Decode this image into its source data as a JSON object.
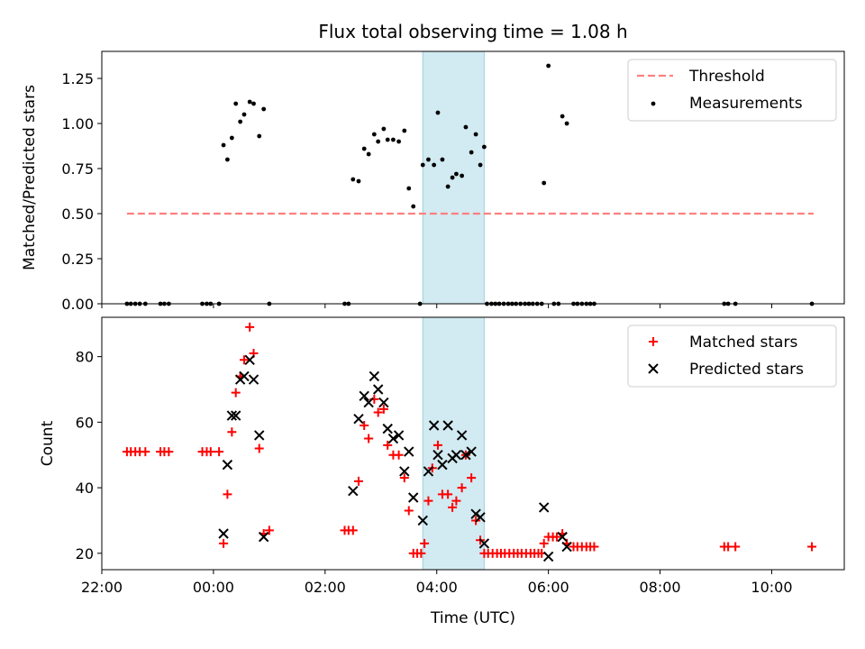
{
  "chart_data": [
    {
      "type": "scatter",
      "title": "Flux total observing time = 1.08 h",
      "xlabel": "",
      "ylabel": "Matched/Predicted stars",
      "xlim": [
        -2.0,
        11.3
      ],
      "ylim": [
        0,
        1.4
      ],
      "yticks": [
        0.0,
        0.25,
        0.5,
        0.75,
        1.0,
        1.25
      ],
      "ytick_labels": [
        "0.00",
        "0.25",
        "0.50",
        "0.75",
        "1.00",
        "1.25"
      ],
      "highlight": {
        "x0": 3.75,
        "x1": 4.85,
        "color": "#add8e6"
      },
      "legend": {
        "position": "top-right",
        "entries": [
          "Threshold",
          "Measurements"
        ]
      },
      "series": [
        {
          "name": "Threshold",
          "kind": "dashed-line",
          "color": "#ff7f7f",
          "x": [
            -1.55,
            10.75
          ],
          "y": [
            0.5,
            0.5
          ]
        },
        {
          "name": "Measurements",
          "kind": "dot",
          "color": "#000000",
          "points": [
            [
              -1.55,
              0
            ],
            [
              -1.48,
              0
            ],
            [
              -1.4,
              0
            ],
            [
              -1.32,
              0
            ],
            [
              -1.22,
              0
            ],
            [
              -0.95,
              0
            ],
            [
              -0.88,
              0
            ],
            [
              -0.8,
              0
            ],
            [
              -0.2,
              0
            ],
            [
              -0.12,
              0
            ],
            [
              -0.05,
              0
            ],
            [
              0.1,
              0
            ],
            [
              0.18,
              0.88
            ],
            [
              0.25,
              0.8
            ],
            [
              0.33,
              0.92
            ],
            [
              0.4,
              1.11
            ],
            [
              0.48,
              1.01
            ],
            [
              0.55,
              1.05
            ],
            [
              0.65,
              1.12
            ],
            [
              0.72,
              1.11
            ],
            [
              0.82,
              0.93
            ],
            [
              0.9,
              1.08
            ],
            [
              1.0,
              0
            ],
            [
              2.35,
              0
            ],
            [
              2.42,
              0
            ],
            [
              2.5,
              0.69
            ],
            [
              2.6,
              0.68
            ],
            [
              2.7,
              0.86
            ],
            [
              2.78,
              0.83
            ],
            [
              2.88,
              0.94
            ],
            [
              2.95,
              0.9
            ],
            [
              3.05,
              0.97
            ],
            [
              3.12,
              0.91
            ],
            [
              3.22,
              0.91
            ],
            [
              3.32,
              0.9
            ],
            [
              3.42,
              0.96
            ],
            [
              3.5,
              0.64
            ],
            [
              3.58,
              0.54
            ],
            [
              3.7,
              0
            ],
            [
              3.75,
              0.77
            ],
            [
              3.85,
              0.8
            ],
            [
              3.95,
              0.77
            ],
            [
              4.02,
              1.06
            ],
            [
              4.1,
              0.8
            ],
            [
              4.2,
              0.65
            ],
            [
              4.28,
              0.7
            ],
            [
              4.35,
              0.72
            ],
            [
              4.45,
              0.71
            ],
            [
              4.52,
              0.98
            ],
            [
              4.62,
              0.84
            ],
            [
              4.7,
              0.94
            ],
            [
              4.78,
              0.77
            ],
            [
              4.85,
              0.87
            ],
            [
              4.9,
              0
            ],
            [
              4.98,
              0
            ],
            [
              5.05,
              0
            ],
            [
              5.12,
              0
            ],
            [
              5.2,
              0
            ],
            [
              5.28,
              0
            ],
            [
              5.35,
              0
            ],
            [
              5.42,
              0
            ],
            [
              5.5,
              0
            ],
            [
              5.58,
              0
            ],
            [
              5.65,
              0
            ],
            [
              5.72,
              0
            ],
            [
              5.8,
              0
            ],
            [
              5.88,
              0
            ],
            [
              5.92,
              0.67
            ],
            [
              6.0,
              1.32
            ],
            [
              6.1,
              0
            ],
            [
              6.18,
              0
            ],
            [
              6.25,
              1.04
            ],
            [
              6.33,
              1.0
            ],
            [
              6.45,
              0
            ],
            [
              6.52,
              0
            ],
            [
              6.6,
              0
            ],
            [
              6.68,
              0
            ],
            [
              6.75,
              0
            ],
            [
              6.82,
              0
            ],
            [
              9.15,
              0
            ],
            [
              9.22,
              0
            ],
            [
              9.35,
              0
            ],
            [
              10.72,
              0
            ]
          ]
        }
      ]
    },
    {
      "type": "scatter",
      "title": "",
      "xlabel": "Time (UTC)",
      "ylabel": "Count",
      "xlim": [
        -2.0,
        11.3
      ],
      "ylim": [
        15,
        92
      ],
      "yticks": [
        20,
        40,
        60,
        80
      ],
      "ytick_labels": [
        "20",
        "40",
        "60",
        "80"
      ],
      "xticks": [
        -2,
        0,
        2,
        4,
        6,
        8,
        10
      ],
      "xtick_labels": [
        "22:00",
        "00:00",
        "02:00",
        "04:00",
        "06:00",
        "08:00",
        "10:00"
      ],
      "highlight": {
        "x0": 3.75,
        "x1": 4.85,
        "color": "#add8e6"
      },
      "legend": {
        "position": "top-right",
        "entries": [
          "Matched stars",
          "Predicted stars"
        ]
      },
      "series": [
        {
          "name": "Matched stars",
          "kind": "plus",
          "color": "#ff0000",
          "points": [
            [
              -1.55,
              51
            ],
            [
              -1.48,
              51
            ],
            [
              -1.4,
              51
            ],
            [
              -1.32,
              51
            ],
            [
              -1.22,
              51
            ],
            [
              -0.95,
              51
            ],
            [
              -0.88,
              51
            ],
            [
              -0.8,
              51
            ],
            [
              -0.2,
              51
            ],
            [
              -0.12,
              51
            ],
            [
              -0.05,
              51
            ],
            [
              0.1,
              51
            ],
            [
              0.18,
              23
            ],
            [
              0.25,
              38
            ],
            [
              0.33,
              57
            ],
            [
              0.4,
              69
            ],
            [
              0.48,
              74
            ],
            [
              0.55,
              79
            ],
            [
              0.65,
              89
            ],
            [
              0.72,
              81
            ],
            [
              0.82,
              52
            ],
            [
              0.9,
              26
            ],
            [
              1.0,
              27
            ],
            [
              2.35,
              27
            ],
            [
              2.42,
              27
            ],
            [
              2.5,
              27
            ],
            [
              2.6,
              42
            ],
            [
              2.7,
              59
            ],
            [
              2.78,
              55
            ],
            [
              2.88,
              67
            ],
            [
              2.95,
              63
            ],
            [
              3.05,
              64
            ],
            [
              3.12,
              53
            ],
            [
              3.22,
              50
            ],
            [
              3.32,
              50
            ],
            [
              3.42,
              43
            ],
            [
              3.5,
              33
            ],
            [
              3.58,
              20
            ],
            [
              3.65,
              20
            ],
            [
              3.72,
              20
            ],
            [
              3.78,
              23
            ],
            [
              3.85,
              36
            ],
            [
              3.92,
              46
            ],
            [
              4.02,
              53
            ],
            [
              4.1,
              38
            ],
            [
              4.2,
              38
            ],
            [
              4.28,
              34
            ],
            [
              4.35,
              36
            ],
            [
              4.45,
              40
            ],
            [
              4.52,
              50
            ],
            [
              4.62,
              43
            ],
            [
              4.7,
              30
            ],
            [
              4.78,
              24
            ],
            [
              4.85,
              20
            ],
            [
              4.92,
              20
            ],
            [
              5.0,
              20
            ],
            [
              5.08,
              20
            ],
            [
              5.15,
              20
            ],
            [
              5.22,
              20
            ],
            [
              5.3,
              20
            ],
            [
              5.38,
              20
            ],
            [
              5.45,
              20
            ],
            [
              5.52,
              20
            ],
            [
              5.6,
              20
            ],
            [
              5.68,
              20
            ],
            [
              5.75,
              20
            ],
            [
              5.82,
              20
            ],
            [
              5.88,
              20
            ],
            [
              5.92,
              23
            ],
            [
              6.0,
              25
            ],
            [
              6.08,
              25
            ],
            [
              6.15,
              25
            ],
            [
              6.25,
              26
            ],
            [
              6.33,
              23
            ],
            [
              6.45,
              22
            ],
            [
              6.52,
              22
            ],
            [
              6.6,
              22
            ],
            [
              6.68,
              22
            ],
            [
              6.75,
              22
            ],
            [
              6.82,
              22
            ],
            [
              9.15,
              22
            ],
            [
              9.22,
              22
            ],
            [
              9.35,
              22
            ],
            [
              10.72,
              22
            ]
          ]
        },
        {
          "name": "Predicted stars",
          "kind": "x",
          "color": "#000000",
          "points": [
            [
              0.18,
              26
            ],
            [
              0.25,
              47
            ],
            [
              0.33,
              62
            ],
            [
              0.4,
              62
            ],
            [
              0.48,
              73
            ],
            [
              0.55,
              74
            ],
            [
              0.65,
              79
            ],
            [
              0.72,
              73
            ],
            [
              0.82,
              56
            ],
            [
              0.9,
              25
            ],
            [
              2.5,
              39
            ],
            [
              2.6,
              61
            ],
            [
              2.7,
              68
            ],
            [
              2.78,
              66
            ],
            [
              2.88,
              74
            ],
            [
              2.95,
              70
            ],
            [
              3.05,
              66
            ],
            [
              3.12,
              58
            ],
            [
              3.22,
              55
            ],
            [
              3.32,
              56
            ],
            [
              3.42,
              45
            ],
            [
              3.5,
              51
            ],
            [
              3.58,
              37
            ],
            [
              3.75,
              30
            ],
            [
              3.85,
              45
            ],
            [
              3.95,
              59
            ],
            [
              4.02,
              50
            ],
            [
              4.1,
              47
            ],
            [
              4.2,
              59
            ],
            [
              4.28,
              49
            ],
            [
              4.35,
              50
            ],
            [
              4.45,
              56
            ],
            [
              4.52,
              50
            ],
            [
              4.62,
              51
            ],
            [
              4.7,
              32
            ],
            [
              4.78,
              31
            ],
            [
              4.85,
              23
            ],
            [
              5.92,
              34
            ],
            [
              6.0,
              19
            ],
            [
              6.25,
              25
            ],
            [
              6.33,
              22
            ]
          ]
        }
      ]
    }
  ]
}
